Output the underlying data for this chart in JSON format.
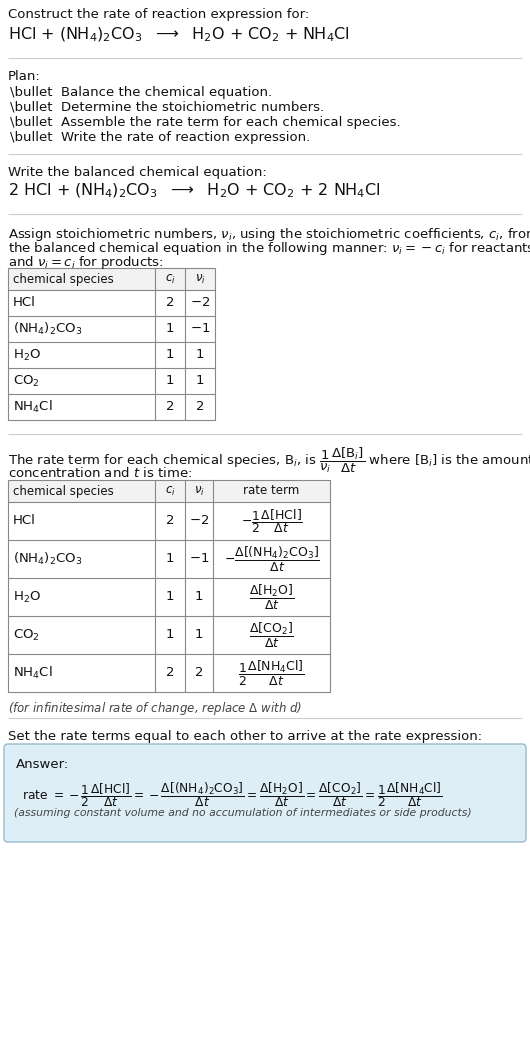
{
  "title_line1": "Construct the rate of reaction expression for:",
  "title_line2": "HCl + (NH$_4$)$_2$CO$_3$  $\\longrightarrow$  H$_2$O + CO$_2$ + NH$_4$Cl",
  "plan_header": "Plan:",
  "plan_items": [
    "\\bullet  Balance the chemical equation.",
    "\\bullet  Determine the stoichiometric numbers.",
    "\\bullet  Assemble the rate term for each chemical species.",
    "\\bullet  Write the rate of reaction expression."
  ],
  "balanced_header": "Write the balanced chemical equation:",
  "balanced_eq": "2 HCl + (NH$_4$)$_2$CO$_3$  $\\longrightarrow$  H$_2$O + CO$_2$ + 2 NH$_4$Cl",
  "stoich_intro1": "Assign stoichiometric numbers, $\\nu_i$, using the stoichiometric coefficients, $c_i$, from",
  "stoich_intro2": "the balanced chemical equation in the following manner: $\\nu_i = -c_i$ for reactants",
  "stoich_intro3": "and $\\nu_i = c_i$ for products:",
  "table1_headers": [
    "chemical species",
    "$c_i$",
    "$\\nu_i$"
  ],
  "table1_rows": [
    [
      "HCl",
      "2",
      "$-2$"
    ],
    [
      "(NH$_4$)$_2$CO$_3$",
      "1",
      "$-1$"
    ],
    [
      "H$_2$O",
      "1",
      "1"
    ],
    [
      "CO$_2$",
      "1",
      "1"
    ],
    [
      "NH$_4$Cl",
      "2",
      "2"
    ]
  ],
  "rate_intro1": "The rate term for each chemical species, B$_i$, is $\\dfrac{1}{\\nu_i}\\dfrac{\\Delta[\\mathrm{B}_i]}{\\Delta t}$ where [B$_i$] is the amount",
  "rate_intro2": "concentration and $t$ is time:",
  "table2_headers": [
    "chemical species",
    "$c_i$",
    "$\\nu_i$",
    "rate term"
  ],
  "table2_rows": [
    [
      "HCl",
      "2",
      "$-2$",
      "$-\\dfrac{1}{2}\\dfrac{\\Delta[\\mathrm{HCl}]}{\\Delta t}$"
    ],
    [
      "(NH$_4$)$_2$CO$_3$",
      "1",
      "$-1$",
      "$-\\dfrac{\\Delta[(\\mathrm{NH_4})_2\\mathrm{CO_3}]}{\\Delta t}$"
    ],
    [
      "H$_2$O",
      "1",
      "1",
      "$\\dfrac{\\Delta[\\mathrm{H_2O}]}{\\Delta t}$"
    ],
    [
      "CO$_2$",
      "1",
      "1",
      "$\\dfrac{\\Delta[\\mathrm{CO_2}]}{\\Delta t}$"
    ],
    [
      "NH$_4$Cl",
      "2",
      "2",
      "$\\dfrac{1}{2}\\dfrac{\\Delta[\\mathrm{NH_4Cl}]}{\\Delta t}$"
    ]
  ],
  "infinitesimal_note": "(for infinitesimal rate of change, replace $\\Delta$ with $d$)",
  "set_equal_text": "Set the rate terms equal to each other to arrive at the rate expression:",
  "answer_label": "Answer:",
  "answer_eq": "rate $= -\\dfrac{1}{2}\\dfrac{\\Delta[\\mathrm{HCl}]}{\\Delta t} = -\\dfrac{\\Delta[(\\mathrm{NH_4})_2\\mathrm{CO_3}]}{\\Delta t} = \\dfrac{\\Delta[\\mathrm{H_2O}]}{\\Delta t} = \\dfrac{\\Delta[\\mathrm{CO_2}]}{\\Delta t} = \\dfrac{1}{2}\\dfrac{\\Delta[\\mathrm{NH_4Cl}]}{\\Delta t}$",
  "assumption_note": "(assuming constant volume and no accumulation of intermediates or side products)",
  "bg_color": "#ffffff",
  "answer_box_color": "#ddeef6",
  "answer_box_border": "#99bbcc",
  "text_color": "#111111",
  "gray_text": "#444444",
  "separator_color": "#cccccc",
  "table_border": "#888888",
  "table_header_bg": "#f2f2f2",
  "fs_body": 9.5,
  "fs_chem": 11.5,
  "fs_small": 8.5,
  "fs_header": 9.0
}
